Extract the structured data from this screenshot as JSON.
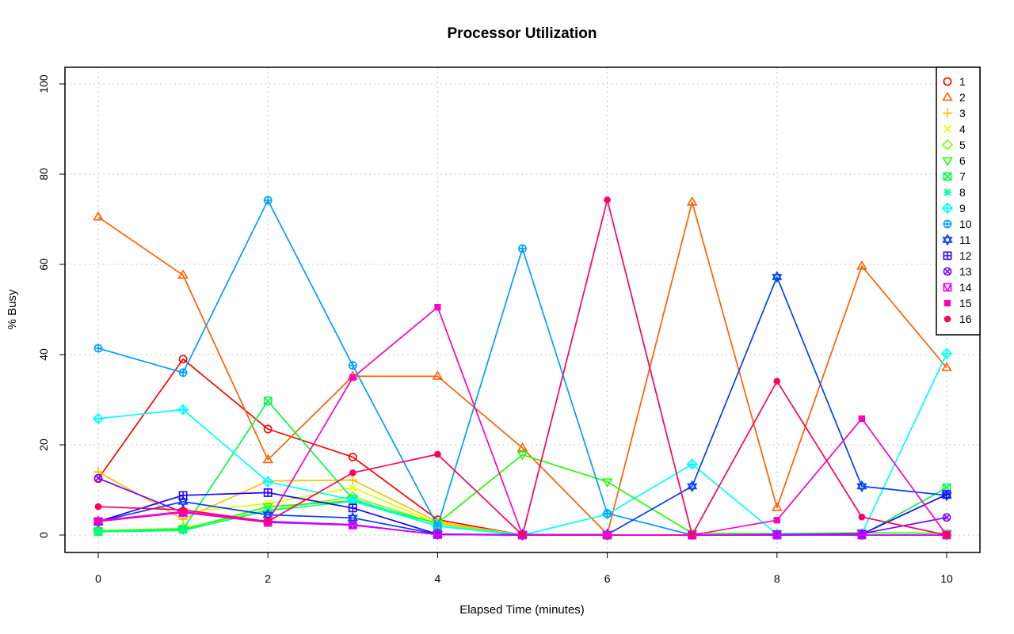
{
  "chart_data": {
    "type": "line",
    "title": "Processor Utilization",
    "xlabel": "Elapsed Time (minutes)",
    "ylabel": "% Busy",
    "xlim": [
      0,
      10
    ],
    "ylim": [
      0,
      100
    ],
    "x_ticks": [
      0,
      2,
      4,
      6,
      8,
      10
    ],
    "y_ticks": [
      0,
      20,
      40,
      60,
      80,
      100
    ],
    "grid": true,
    "legend_position": "top-right",
    "x": [
      0,
      1,
      2,
      3,
      4,
      5,
      6,
      7,
      8,
      9,
      10
    ],
    "series": [
      {
        "name": "1",
        "color": "#FF0000",
        "marker": "circle",
        "values": [
          12.5,
          39,
          23.5,
          17.3,
          3.4,
          0,
          0,
          0,
          0,
          0,
          0
        ]
      },
      {
        "name": "2",
        "color": "#FF6000",
        "marker": "triangle",
        "values": [
          70.5,
          57.6,
          16.7,
          35.2,
          35.2,
          19.3,
          0.2,
          73.8,
          6.1,
          59.6,
          37.1
        ]
      },
      {
        "name": "3",
        "color": "#FFBF00",
        "marker": "plus",
        "values": [
          14,
          3.5,
          12,
          12.2,
          2.9,
          0,
          0,
          0,
          0,
          0,
          0
        ]
      },
      {
        "name": "4",
        "color": "#DFFF00",
        "marker": "cross",
        "values": [
          3,
          5,
          7,
          10.5,
          2.5,
          0,
          0,
          0,
          0,
          0,
          0
        ]
      },
      {
        "name": "5",
        "color": "#80FF00",
        "marker": "diamond",
        "values": [
          1,
          1.5,
          5.5,
          8.5,
          2.5,
          0,
          0,
          0,
          0,
          0,
          0
        ]
      },
      {
        "name": "6",
        "color": "#20FF00",
        "marker": "triangle-down",
        "values": [
          0.8,
          1.2,
          6.3,
          7.6,
          2.6,
          17.8,
          11.8,
          0.4,
          0.3,
          0.5,
          0.4
        ]
      },
      {
        "name": "7",
        "color": "#00FF40",
        "marker": "square-x",
        "values": [
          0.8,
          1.3,
          29.7,
          8,
          2,
          0,
          0,
          0,
          0,
          0,
          10.5
        ]
      },
      {
        "name": "8",
        "color": "#00FF9F",
        "marker": "asterisk",
        "values": [
          0.7,
          1,
          5.4,
          7.5,
          2,
          0,
          0,
          0,
          0,
          0,
          0
        ]
      },
      {
        "name": "9",
        "color": "#00FFFF",
        "marker": "diamond-plus",
        "values": [
          25.8,
          27.8,
          11.8,
          7.8,
          2,
          0,
          4.6,
          15.7,
          0.2,
          0.3,
          40.2
        ]
      },
      {
        "name": "10",
        "color": "#009FFF",
        "marker": "circle-plus",
        "values": [
          41.4,
          36,
          74.2,
          37.6,
          2,
          63.5,
          4.8,
          0,
          0,
          0,
          0
        ]
      },
      {
        "name": "11",
        "color": "#0040FF",
        "marker": "star-of-david",
        "values": [
          3,
          7.4,
          4.5,
          3.8,
          0.2,
          0.1,
          0.1,
          10.8,
          57.2,
          10.8,
          8.8
        ]
      },
      {
        "name": "12",
        "color": "#2000FF",
        "marker": "square-plus",
        "values": [
          3,
          8.8,
          9.4,
          6,
          0.2,
          0,
          0,
          0,
          0.1,
          0.2,
          9
        ]
      },
      {
        "name": "13",
        "color": "#8000FF",
        "marker": "circle-x",
        "values": [
          12.6,
          5,
          3,
          2.3,
          0.1,
          0,
          0,
          0,
          0,
          0.3,
          3.9
        ]
      },
      {
        "name": "14",
        "color": "#DF00FF",
        "marker": "triangle-box",
        "values": [
          3,
          5,
          2.8,
          2.2,
          0.1,
          0,
          0,
          0,
          0,
          0,
          0
        ]
      },
      {
        "name": "15",
        "color": "#FF00BF",
        "marker": "filled-square",
        "values": [
          3.2,
          5.2,
          3,
          34.9,
          50.5,
          0,
          0,
          0,
          3.3,
          25.8,
          0
        ]
      },
      {
        "name": "16",
        "color": "#FF0060",
        "marker": "filled-circle",
        "values": [
          6.3,
          5.6,
          3,
          13.8,
          17.9,
          0,
          74.3,
          0,
          34.1,
          4,
          0
        ]
      }
    ]
  }
}
